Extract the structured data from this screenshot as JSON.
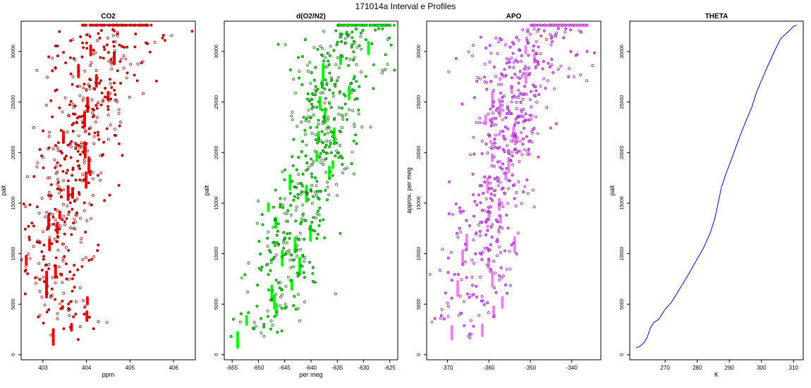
{
  "page": {
    "title": "171014a   Interval e Profiles"
  },
  "chart_data": [
    {
      "type": "scatter",
      "title": "CO2",
      "xlabel": "ppm",
      "ylabel": "palt",
      "xlim": [
        402.5,
        406.5
      ],
      "ylim": [
        -500,
        33000
      ],
      "x_ticks": [
        403,
        404,
        405,
        406
      ],
      "y_ticks": [
        0,
        5000,
        10000,
        15000,
        20000,
        25000,
        30000
      ],
      "grid": false,
      "colors": {
        "fill": "#ff0000",
        "edge": "#8b0000"
      },
      "profile": [
        [
          403.6,
          1500
        ],
        [
          403.4,
          4000
        ],
        [
          403.2,
          7500
        ],
        [
          403.3,
          11000
        ],
        [
          403.5,
          15000
        ],
        [
          403.7,
          19500
        ],
        [
          404.0,
          24500
        ],
        [
          404.3,
          29000
        ],
        [
          404.6,
          32500
        ]
      ],
      "spread": 0.42,
      "top_band": {
        "y": 32600,
        "xmin": 403.9,
        "xmax": 405.5
      }
    },
    {
      "type": "scatter",
      "title": "d(O2/N2)",
      "xlabel": "per meg",
      "ylabel": "palt",
      "xlim": [
        -656.5,
        -623.5
      ],
      "ylim": [
        -500,
        33000
      ],
      "x_ticks": [
        -655,
        -650,
        -645,
        -640,
        -635,
        -630,
        -625
      ],
      "y_ticks": [
        0,
        5000,
        10000,
        15000,
        20000,
        25000,
        30000
      ],
      "grid": false,
      "colors": {
        "fill": "#00ff00",
        "edge": "#006400"
      },
      "profile": [
        [
          -651,
          2500
        ],
        [
          -646,
          5500
        ],
        [
          -644,
          10000
        ],
        [
          -642,
          14500
        ],
        [
          -638,
          19500
        ],
        [
          -637,
          24500
        ],
        [
          -636,
          29000
        ],
        [
          -630,
          32500
        ]
      ],
      "spread": 3.4,
      "top_band": {
        "y": 32600,
        "xmin": -635,
        "xmax": -624
      }
    },
    {
      "type": "scatter",
      "title": "APO",
      "xlabel": "",
      "ylabel": "approx. per meg",
      "xlim": [
        -375,
        -333
      ],
      "ylim": [
        -500,
        33000
      ],
      "x_ticks": [
        -370,
        -360,
        -350,
        -340
      ],
      "y_ticks": [
        0,
        5000,
        10000,
        15000,
        20000,
        25000,
        30000
      ],
      "grid": false,
      "colors": {
        "fill": "#ee82ee",
        "edge": "#9400d3"
      },
      "profile": [
        [
          -369,
          2500
        ],
        [
          -362,
          6000
        ],
        [
          -362,
          10000
        ],
        [
          -359,
          15000
        ],
        [
          -356,
          20000
        ],
        [
          -354,
          25000
        ],
        [
          -352,
          29000
        ],
        [
          -345,
          32500
        ]
      ],
      "spread": 4.2,
      "top_band": {
        "y": 32600,
        "xmin": -350,
        "xmax": -336
      }
    },
    {
      "type": "line",
      "title": "THETA",
      "xlabel": "K",
      "ylabel": "palt",
      "xlim": [
        259,
        313
      ],
      "ylim": [
        -500,
        33000
      ],
      "x_ticks": [
        270,
        280,
        290,
        300,
        310
      ],
      "y_ticks": [
        0,
        5000,
        10000,
        15000,
        20000,
        25000,
        30000
      ],
      "grid": false,
      "colors": {
        "line": "#0000ff"
      },
      "x": [
        261.0,
        262.0,
        263.5,
        264.5,
        265.5,
        266.5,
        268.0,
        270.0,
        272.0,
        274.5,
        277.0,
        279.5,
        282.0,
        284.0,
        285.5,
        286.5,
        287.5,
        288.8,
        290.5,
        292.0,
        293.5,
        295.0,
        297.0,
        298.5,
        300.5,
        302.0,
        304.0,
        306.0,
        308.5,
        310.0,
        311.0
      ],
      "y": [
        700,
        800,
        1200,
        1800,
        2700,
        3200,
        3500,
        4500,
        5200,
        6500,
        7800,
        9200,
        10600,
        12000,
        13500,
        15000,
        16500,
        17800,
        19200,
        20500,
        21800,
        23000,
        24500,
        26000,
        27500,
        28600,
        30000,
        31300,
        32000,
        32500,
        32600
      ]
    }
  ]
}
